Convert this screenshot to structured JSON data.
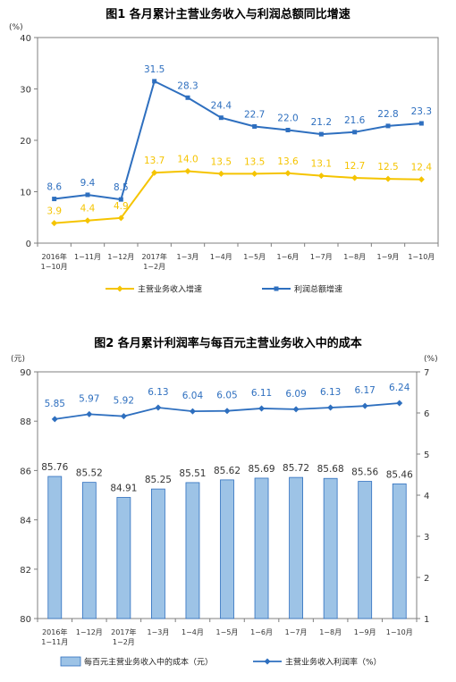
{
  "chart_data": [
    {
      "type": "line",
      "title": "图1  各月累计主营业务收入与利润总额同比增速",
      "y_unit": "(%)",
      "ylim": [
        0,
        40
      ],
      "yticks": [
        "0",
        "10",
        "20",
        "30",
        "40"
      ],
      "categories": [
        [
          "2016年",
          "1−10月"
        ],
        [
          "1−11月"
        ],
        [
          "1−12月"
        ],
        [
          "2017年",
          "1−2月"
        ],
        [
          "1−3月"
        ],
        [
          "1−4月"
        ],
        [
          "1−5月"
        ],
        [
          "1−6月"
        ],
        [
          "1−7月"
        ],
        [
          "1−8月"
        ],
        [
          "1−9月"
        ],
        [
          "1−10月"
        ]
      ],
      "grid": false,
      "legend_position": "bottom",
      "series": [
        {
          "name": "主营业务收入增速",
          "color": "#F5C400",
          "marker": "diamond",
          "values": [
            3.9,
            4.4,
            4.9,
            13.7,
            14.0,
            13.5,
            13.5,
            13.6,
            13.1,
            12.7,
            12.5,
            12.4
          ],
          "labels": [
            "3.9",
            "4.4",
            "4.9",
            "13.7",
            "14.0",
            "13.5",
            "13.5",
            "13.6",
            "13.1",
            "12.7",
            "12.5",
            "12.4"
          ]
        },
        {
          "name": "利润总额增速",
          "color": "#2E6FBF",
          "marker": "square",
          "values": [
            8.6,
            9.4,
            8.5,
            31.5,
            28.3,
            24.4,
            22.7,
            22.0,
            21.2,
            21.6,
            22.8,
            23.3
          ],
          "labels": [
            "8.6",
            "9.4",
            "8.5",
            "31.5",
            "28.3",
            "24.4",
            "22.7",
            "22.0",
            "21.2",
            "21.6",
            "22.8",
            "23.3"
          ]
        }
      ]
    },
    {
      "type": "bar+line",
      "title": "图2  各月累计利润率与每百元主营业务收入中的成本",
      "y_unit_left": "(元)",
      "y_unit_right": "(%)",
      "ylim_left": [
        80,
        90
      ],
      "yticks_left": [
        "80",
        "82",
        "84",
        "86",
        "88",
        "90"
      ],
      "ylim_right": [
        1,
        7
      ],
      "yticks_right": [
        "1",
        "2",
        "3",
        "4",
        "5",
        "6",
        "7"
      ],
      "categories": [
        [
          "2016年",
          "1−11月"
        ],
        [
          "1−12月"
        ],
        [
          "2017年",
          "1−2月"
        ],
        [
          "1−3月"
        ],
        [
          "1−4月"
        ],
        [
          "1−5月"
        ],
        [
          "1−6月"
        ],
        [
          "1−7月"
        ],
        [
          "1−8月"
        ],
        [
          "1−9月"
        ],
        [
          "1−10月"
        ]
      ],
      "grid": false,
      "legend_position": "bottom",
      "bars": {
        "name": "每百元主营业务收入中的成本（元）",
        "color": "#9DC3E6",
        "edge": "#2E6FBF",
        "axis": "left",
        "values": [
          85.76,
          85.52,
          84.91,
          85.25,
          85.51,
          85.62,
          85.69,
          85.72,
          85.68,
          85.56,
          85.46
        ],
        "labels": [
          "85.76",
          "85.52",
          "84.91",
          "85.25",
          "85.51",
          "85.62",
          "85.69",
          "85.72",
          "85.68",
          "85.56",
          "85.46"
        ]
      },
      "line": {
        "name": "主营业务收入利润率（%）",
        "color": "#2E6FBF",
        "marker": "diamond",
        "axis": "right",
        "values": [
          5.85,
          5.97,
          5.92,
          6.13,
          6.04,
          6.05,
          6.11,
          6.09,
          6.13,
          6.17,
          6.24
        ],
        "labels": [
          "5.85",
          "5.97",
          "5.92",
          "6.13",
          "6.04",
          "6.05",
          "6.11",
          "6.09",
          "6.13",
          "6.17",
          "6.24"
        ]
      }
    }
  ]
}
